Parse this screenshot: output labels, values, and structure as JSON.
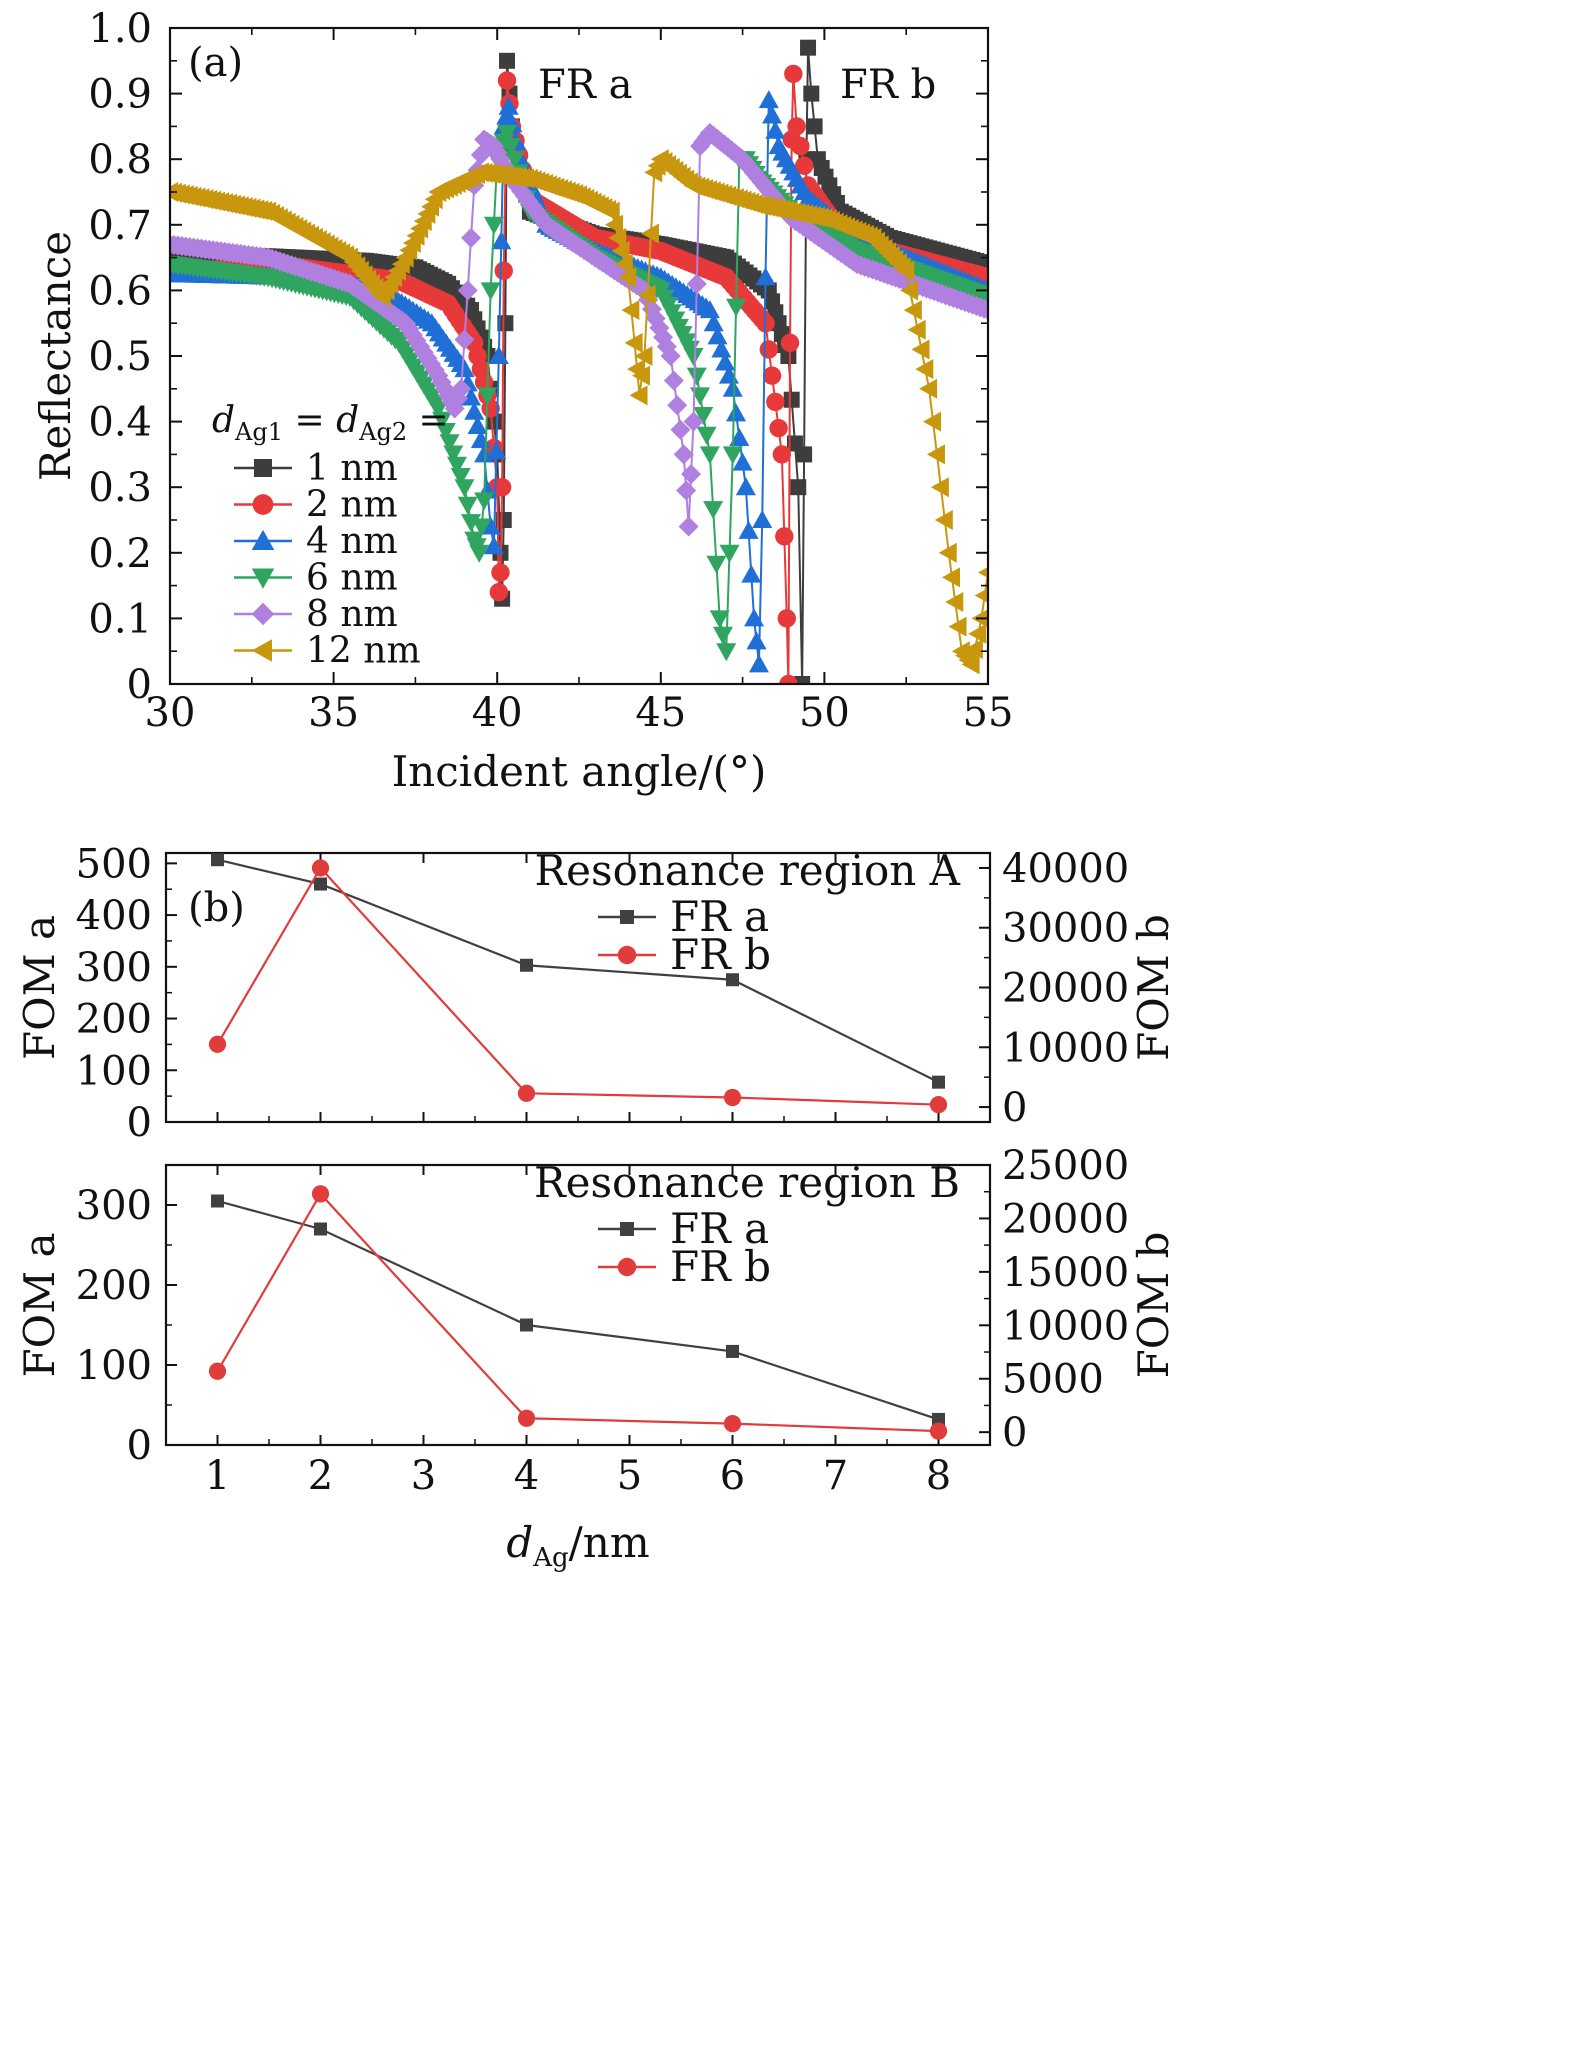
{
  "colors": {
    "s1": "#3d3d3d",
    "s2": "#e8393a",
    "s4": "#1f6fd6",
    "s6": "#2fa55f",
    "s8": "#b080e0",
    "s12": "#c8970e",
    "fr_a": "#404040",
    "fr_b": "#e03c3c"
  },
  "chart_data": [
    {
      "id": "a",
      "type": "line",
      "panel_label": "(a)",
      "xlabel": "Incident angle/(°)",
      "ylabel": "Reflectance",
      "xlim": [
        30,
        55
      ],
      "ylim": [
        0,
        1.0
      ],
      "xticks": [
        "30",
        "35",
        "40",
        "45",
        "50",
        "55"
      ],
      "yticks": [
        "0",
        "0.1",
        "0.2",
        "0.3",
        "0.4",
        "0.5",
        "0.6",
        "0.7",
        "0.8",
        "0.9",
        "1.0"
      ],
      "legend_title": "dAg1 = dAg2 =",
      "legend_title_parts": [
        "d",
        "Ag1",
        " = ",
        "d",
        "Ag2",
        " ="
      ],
      "legend_position": "bottom-left",
      "annotations": [
        "FR a",
        "FR b"
      ],
      "series": [
        {
          "name": "1 nm",
          "marker": "square",
          "color": "#3d3d3d",
          "x": [
            30,
            33,
            36,
            37.5,
            38.5,
            39.2,
            39.7,
            40.0,
            40.1,
            40.15,
            40.2,
            40.25,
            40.3,
            40.45,
            41,
            43,
            45,
            47,
            48.3,
            48.9,
            49.2,
            49.32,
            49.38,
            49.45,
            49.5,
            49.6,
            49.8,
            50.5,
            52,
            55
          ],
          "y": [
            0.65,
            0.652,
            0.645,
            0.635,
            0.61,
            0.57,
            0.5,
            0.35,
            0.2,
            0.13,
            0.25,
            0.55,
            0.95,
            0.85,
            0.72,
            0.685,
            0.67,
            0.65,
            0.6,
            0.5,
            0.3,
            0.0,
            0.35,
            0.8,
            0.97,
            0.9,
            0.8,
            0.72,
            0.68,
            0.64
          ]
        },
        {
          "name": "2 nm",
          "marker": "circle",
          "color": "#e8393a",
          "x": [
            30,
            34,
            37,
            38.5,
            39.3,
            39.8,
            40.0,
            40.05,
            40.1,
            40.15,
            40.2,
            40.3,
            40.45,
            41,
            43,
            45,
            47,
            48.2,
            48.7,
            48.85,
            48.9,
            48.95,
            49.0,
            49.05,
            49.15,
            49.5,
            50.5,
            52,
            55
          ],
          "y": [
            0.63,
            0.635,
            0.615,
            0.58,
            0.52,
            0.42,
            0.3,
            0.14,
            0.17,
            0.3,
            0.63,
            0.92,
            0.85,
            0.74,
            0.68,
            0.66,
            0.62,
            0.55,
            0.35,
            0.1,
            0.0,
            0.52,
            0.83,
            0.93,
            0.85,
            0.76,
            0.69,
            0.66,
            0.62
          ]
        },
        {
          "name": "4 nm",
          "marker": "triangle-up",
          "color": "#1f6fd6",
          "x": [
            30,
            34,
            36.5,
            38,
            39,
            39.6,
            39.8,
            39.9,
            40.05,
            40.2,
            40.35,
            40.7,
            41.5,
            43,
            45,
            46.5,
            47.2,
            47.6,
            47.85,
            48.0,
            48.1,
            48.2,
            48.3,
            48.6,
            49.5,
            51,
            55
          ],
          "y": [
            0.625,
            0.62,
            0.6,
            0.55,
            0.48,
            0.35,
            0.24,
            0.21,
            0.5,
            0.85,
            0.88,
            0.8,
            0.7,
            0.66,
            0.62,
            0.57,
            0.45,
            0.3,
            0.1,
            0.03,
            0.25,
            0.62,
            0.89,
            0.82,
            0.74,
            0.68,
            0.6
          ]
        },
        {
          "name": "6 nm",
          "marker": "triangle-down",
          "color": "#2fa55f",
          "x": [
            30,
            33,
            35.5,
            37,
            38.2,
            39,
            39.3,
            39.45,
            39.6,
            39.8,
            40.0,
            40.3,
            41,
            43,
            45,
            46,
            46.5,
            46.8,
            47.0,
            47.2,
            47.4,
            47.6,
            48,
            49,
            51,
            55
          ],
          "y": [
            0.64,
            0.62,
            0.59,
            0.52,
            0.42,
            0.3,
            0.22,
            0.2,
            0.28,
            0.6,
            0.8,
            0.84,
            0.72,
            0.65,
            0.6,
            0.5,
            0.35,
            0.1,
            0.05,
            0.35,
            0.8,
            0.8,
            0.77,
            0.72,
            0.66,
            0.59
          ]
        },
        {
          "name": "8 nm",
          "marker": "diamond",
          "color": "#b080e0",
          "x": [
            30,
            33,
            35.5,
            37.2,
            38.2,
            38.7,
            38.9,
            39.1,
            39.3,
            39.6,
            39.9,
            40.3,
            41.5,
            43,
            44.5,
            45.3,
            45.7,
            45.85,
            46.0,
            46.2,
            46.5,
            47.5,
            49,
            51,
            55
          ],
          "y": [
            0.67,
            0.65,
            0.61,
            0.55,
            0.47,
            0.42,
            0.45,
            0.6,
            0.76,
            0.83,
            0.82,
            0.78,
            0.7,
            0.65,
            0.6,
            0.5,
            0.35,
            0.24,
            0.4,
            0.82,
            0.84,
            0.8,
            0.71,
            0.64,
            0.57
          ]
        },
        {
          "name": "12 nm",
          "marker": "triangle-left",
          "color": "#c8970e",
          "x": [
            30,
            33,
            35.5,
            36.5,
            37.2,
            38.2,
            39.5,
            41,
            42.5,
            43.5,
            44.0,
            44.2,
            44.35,
            44.5,
            44.8,
            45.0,
            46,
            48,
            50,
            51.5,
            52.5,
            53.2,
            53.8,
            54.2,
            54.5,
            54.8,
            55
          ],
          "y": [
            0.75,
            0.72,
            0.65,
            0.59,
            0.65,
            0.75,
            0.78,
            0.77,
            0.745,
            0.72,
            0.62,
            0.52,
            0.44,
            0.5,
            0.78,
            0.8,
            0.76,
            0.73,
            0.71,
            0.68,
            0.63,
            0.45,
            0.2,
            0.05,
            0.03,
            0.1,
            0.17
          ]
        }
      ]
    },
    {
      "id": "b-top",
      "type": "line",
      "panel_label": "(b)",
      "subtitle": "Resonance region A",
      "xlim": [
        0.5,
        8.5
      ],
      "ylabel": "FOM a",
      "ylabel_right": "FOM b",
      "ylim": [
        0,
        520
      ],
      "ylim_right": [
        -2500,
        42500
      ],
      "yticks": [
        "0",
        "100",
        "200",
        "300",
        "400",
        "500"
      ],
      "yticks_right": [
        "0",
        "10000",
        "20000",
        "30000",
        "40000"
      ],
      "legend_position": "top-right",
      "x": [
        1,
        2,
        4,
        6,
        8
      ],
      "series": [
        {
          "name": "FR a",
          "axis": "left",
          "marker": "square",
          "color": "#404040",
          "values": [
            507,
            460,
            303,
            275,
            77
          ]
        },
        {
          "name": "FR b",
          "axis": "right",
          "marker": "circle",
          "color": "#e03c3c",
          "values": [
            10500,
            40000,
            2300,
            1600,
            400
          ]
        }
      ]
    },
    {
      "id": "b-bottom",
      "type": "line",
      "subtitle": "Resonance region B",
      "xlabel": "dAg/nm",
      "xlabel_parts": [
        "d",
        "Ag",
        "/nm"
      ],
      "xlim": [
        0.5,
        8.5
      ],
      "xticks": [
        "1",
        "2",
        "3",
        "4",
        "5",
        "6",
        "7",
        "8"
      ],
      "ylabel": "FOM a",
      "ylabel_right": "FOM b",
      "ylim": [
        0,
        350
      ],
      "ylim_right": [
        -1200,
        25000
      ],
      "yticks": [
        "0",
        "100",
        "200",
        "300"
      ],
      "yticks_right": [
        "0",
        "5000",
        "10000",
        "15000",
        "20000",
        "25000"
      ],
      "legend_position": "top-right",
      "x": [
        1,
        2,
        4,
        6,
        8
      ],
      "series": [
        {
          "name": "FR a",
          "axis": "left",
          "marker": "square",
          "color": "#404040",
          "values": [
            305,
            270,
            150,
            117,
            32
          ]
        },
        {
          "name": "FR b",
          "axis": "right",
          "marker": "circle",
          "color": "#e03c3c",
          "values": [
            5700,
            22300,
            1300,
            800,
            100
          ]
        }
      ]
    }
  ]
}
